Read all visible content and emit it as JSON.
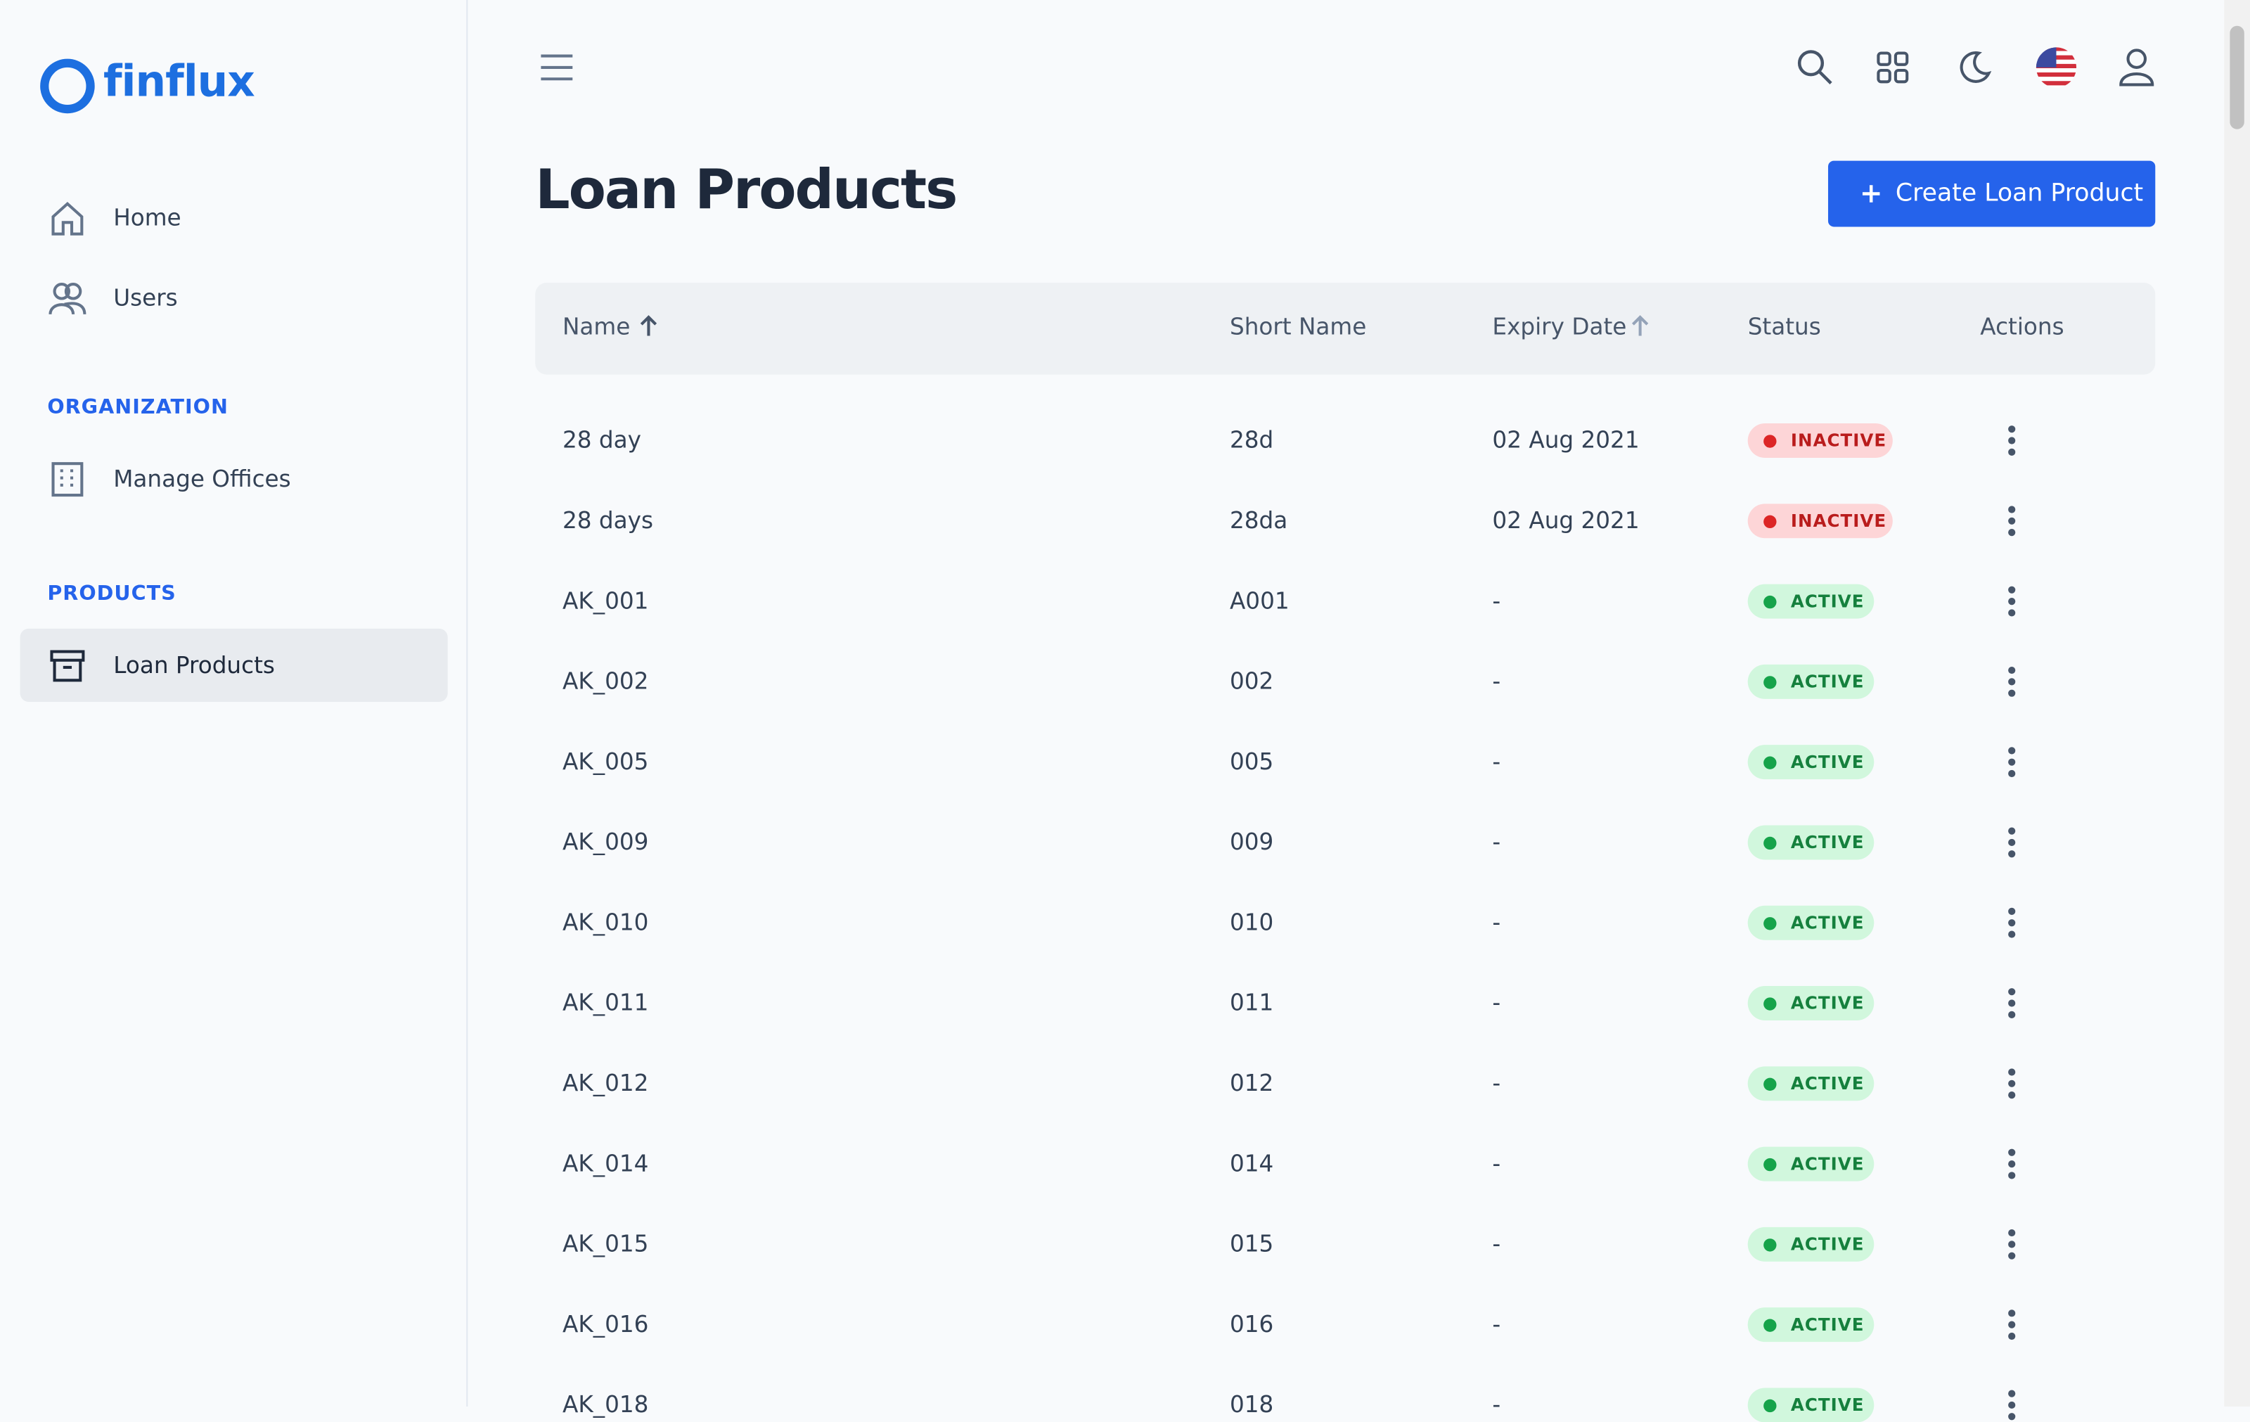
{
  "logo": "finflux",
  "nav": {
    "items": [
      "Home",
      "Users"
    ],
    "sections": [
      {
        "title": "ORGANIZATION",
        "items": [
          "Manage Offices"
        ]
      },
      {
        "title": "PRODUCTS",
        "items": [
          "Loan Products"
        ]
      }
    ]
  },
  "header": {
    "title": "Loan Products",
    "button": "Create Loan Product"
  },
  "table": {
    "columns": [
      "Name",
      "Short Name",
      "Expiry Date",
      "Status",
      "Actions"
    ],
    "rows": [
      [
        "28 day",
        "28d",
        "02 Aug 2021",
        "INACTIVE"
      ],
      [
        "28 days",
        "28da",
        "02 Aug 2021",
        "INACTIVE"
      ],
      [
        "AK_001",
        "A001",
        "-",
        "ACTIVE"
      ],
      [
        "AK_002",
        "002",
        "-",
        "ACTIVE"
      ],
      [
        "AK_005",
        "005",
        "-",
        "ACTIVE"
      ],
      [
        "AK_009",
        "009",
        "-",
        "ACTIVE"
      ],
      [
        "AK_010",
        "010",
        "-",
        "ACTIVE"
      ],
      [
        "AK_011",
        "011",
        "-",
        "ACTIVE"
      ],
      [
        "AK_012",
        "012",
        "-",
        "ACTIVE"
      ],
      [
        "AK_014",
        "014",
        "-",
        "ACTIVE"
      ],
      [
        "AK_015",
        "015",
        "-",
        "ACTIVE"
      ],
      [
        "AK_016",
        "016",
        "-",
        "ACTIVE"
      ],
      [
        "AK_018",
        "018",
        "-",
        "ACTIVE"
      ]
    ]
  }
}
